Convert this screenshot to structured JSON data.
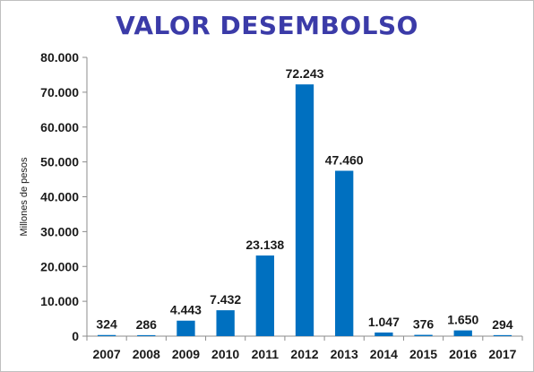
{
  "chart_data": {
    "type": "bar",
    "title": "VALOR DESEMBOLSO",
    "xlabel": "",
    "ylabel": "Millones de pesos",
    "categories": [
      "2007",
      "2008",
      "2009",
      "2010",
      "2011",
      "2012",
      "2013",
      "2014",
      "2015",
      "2016",
      "2017"
    ],
    "values": [
      324,
      286,
      4443,
      7432,
      23138,
      72243,
      47460,
      1047,
      376,
      1650,
      294
    ],
    "value_labels": [
      "324",
      "286",
      "4.443",
      "7.432",
      "23.138",
      "72.243",
      "47.460",
      "1.047",
      "376",
      "1.650",
      "294"
    ],
    "ylim": [
      0,
      80000
    ],
    "yticks": [
      0,
      10000,
      20000,
      30000,
      40000,
      50000,
      60000,
      70000,
      80000
    ],
    "ytick_labels": [
      "0",
      "10.000",
      "20.000",
      "30.000",
      "40.000",
      "50.000",
      "60.000",
      "70.000",
      "80.000"
    ],
    "grid": false,
    "legend": "none",
    "bar_color": "#0070c0",
    "title_color": "#3b3ba8"
  }
}
